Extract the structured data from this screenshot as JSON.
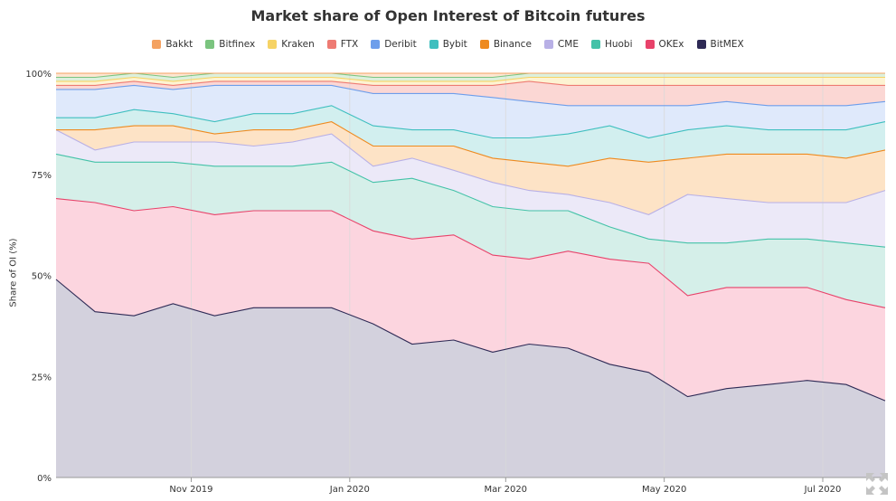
{
  "chart": {
    "title": "Market share of Open Interest of Bitcoin futures",
    "ylabel": "Share of OI (%)"
  },
  "legend": [
    {
      "label": "Bakkt",
      "color": "#f4a261"
    },
    {
      "label": "Bitfinex",
      "color": "#7bc47f"
    },
    {
      "label": "Kraken",
      "color": "#f6d365"
    },
    {
      "label": "FTX",
      "color": "#ee7b73"
    },
    {
      "label": "Deribit",
      "color": "#6d9eeb"
    },
    {
      "label": "Bybit",
      "color": "#3fbfbf"
    },
    {
      "label": "Binance",
      "color": "#ee8a1f"
    },
    {
      "label": "CME",
      "color": "#b8b0e6"
    },
    {
      "label": "Huobi",
      "color": "#44c2a8"
    },
    {
      "label": "OKEx",
      "color": "#e8426a"
    },
    {
      "label": "BitMEX",
      "color": "#2e2a55"
    }
  ],
  "controls": {
    "expand_icon": "expand-arrows-icon"
  },
  "chart_data": {
    "type": "area",
    "stacked": true,
    "normalized": true,
    "title": "Market share of Open Interest of Bitcoin futures",
    "xlabel": "",
    "ylabel": "Share of OI (%)",
    "ylim": [
      0,
      100
    ],
    "yticks": [
      "0%",
      "25%",
      "50%",
      "75%",
      "100%"
    ],
    "xticks": [
      "Nov 2019",
      "Jan 2020",
      "Mar 2020",
      "May 2020",
      "Jul 2020"
    ],
    "x": [
      "2019-09-10",
      "2019-09-25",
      "2019-10-10",
      "2019-10-25",
      "2019-11-10",
      "2019-11-25",
      "2019-12-10",
      "2019-12-25",
      "2020-01-10",
      "2020-01-25",
      "2020-02-10",
      "2020-02-25",
      "2020-03-10",
      "2020-03-25",
      "2020-04-10",
      "2020-04-25",
      "2020-05-10",
      "2020-05-25",
      "2020-06-10",
      "2020-06-25",
      "2020-07-10",
      "2020-07-25"
    ],
    "grid": true,
    "legend_position": "top",
    "series": [
      {
        "name": "BitMEX",
        "color": "#2e2a55",
        "fill": "#d3d1dd",
        "values": [
          49,
          41,
          40,
          43,
          40,
          42,
          42,
          42,
          38,
          33,
          34,
          31,
          33,
          32,
          28,
          26,
          20,
          22,
          23,
          24,
          23,
          19
        ]
      },
      {
        "name": "OKEx",
        "color": "#e8426a",
        "fill": "#fcd5df",
        "values": [
          20,
          27,
          26,
          24,
          25,
          24,
          24,
          24,
          23,
          26,
          26,
          24,
          21,
          24,
          26,
          27,
          25,
          25,
          24,
          23,
          21,
          23
        ]
      },
      {
        "name": "Huobi",
        "color": "#44c2a8",
        "fill": "#d5efe9",
        "values": [
          11,
          10,
          12,
          11,
          12,
          11,
          11,
          12,
          12,
          15,
          11,
          12,
          12,
          10,
          8,
          6,
          13,
          11,
          12,
          12,
          14,
          15
        ]
      },
      {
        "name": "CME",
        "color": "#b8b0e6",
        "fill": "#ece9f8",
        "values": [
          6,
          3,
          5,
          5,
          6,
          5,
          6,
          7,
          4,
          5,
          5,
          6,
          5,
          4,
          6,
          6,
          12,
          11,
          9,
          9,
          10,
          14
        ]
      },
      {
        "name": "Binance",
        "color": "#ee8a1f",
        "fill": "#fde3c6",
        "values": [
          0,
          5,
          4,
          4,
          2,
          4,
          3,
          3,
          5,
          3,
          6,
          6,
          7,
          7,
          11,
          13,
          9,
          11,
          12,
          12,
          11,
          10
        ]
      },
      {
        "name": "Bybit",
        "color": "#3fbfbf",
        "fill": "#d2efef",
        "values": [
          3,
          3,
          4,
          3,
          3,
          4,
          4,
          4,
          5,
          4,
          4,
          5,
          6,
          8,
          8,
          6,
          7,
          7,
          6,
          6,
          7,
          7
        ]
      },
      {
        "name": "Deribit",
        "color": "#6d9eeb",
        "fill": "#dfe9fb",
        "values": [
          7,
          7,
          6,
          6,
          9,
          7,
          7,
          5,
          8,
          9,
          9,
          10,
          9,
          7,
          5,
          8,
          6,
          6,
          6,
          6,
          6,
          5
        ]
      },
      {
        "name": "FTX",
        "color": "#ee7b73",
        "fill": "#fbd7d4",
        "values": [
          1,
          1,
          1,
          1,
          1,
          1,
          1,
          1,
          2,
          2,
          2,
          3,
          5,
          5,
          5,
          5,
          5,
          4,
          5,
          5,
          5,
          4
        ]
      },
      {
        "name": "Kraken",
        "color": "#f6d365",
        "fill": "#fdf3d2",
        "values": [
          1,
          1,
          1,
          1,
          1,
          1,
          1,
          1,
          1,
          1,
          1,
          1,
          1,
          2,
          2,
          2,
          2,
          2,
          2,
          2,
          2,
          2
        ]
      },
      {
        "name": "Bitfinex",
        "color": "#7bc47f",
        "fill": "#dcf0dd",
        "values": [
          1,
          1,
          1,
          1,
          1,
          1,
          1,
          1,
          1,
          1,
          1,
          1,
          1,
          1,
          1,
          1,
          1,
          1,
          1,
          1,
          1,
          1
        ]
      },
      {
        "name": "Bakkt",
        "color": "#f4a261",
        "fill": "#fde6d2",
        "values": [
          1,
          1,
          0,
          1,
          0,
          0,
          0,
          0,
          1,
          1,
          1,
          1,
          0,
          0,
          0,
          0,
          0,
          0,
          0,
          0,
          0,
          0
        ]
      }
    ]
  }
}
